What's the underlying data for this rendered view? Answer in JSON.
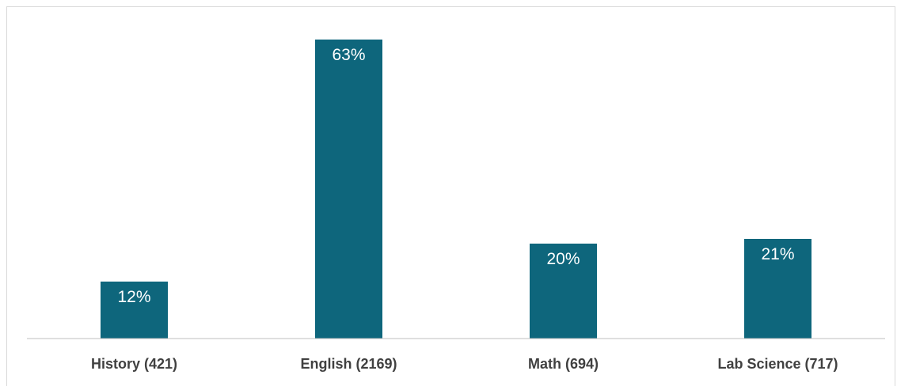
{
  "chart_data": {
    "type": "bar",
    "title": "",
    "xlabel": "",
    "ylabel": "",
    "categories": [
      "History (421)",
      "English (2169)",
      "Math (694)",
      "Lab Science (717)"
    ],
    "values": [
      12,
      63,
      20,
      21
    ],
    "data_labels": [
      "12%",
      "63%",
      "20%",
      "21%"
    ],
    "ylim": [
      0,
      70
    ],
    "grid": false,
    "legend": "none",
    "bar_color": "#0e667c",
    "axis_color": "#bfbfbf"
  }
}
